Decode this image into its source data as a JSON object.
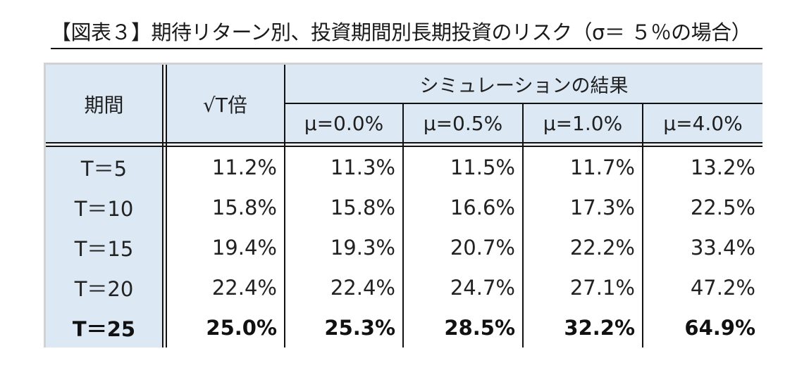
{
  "title": "【図表３】期待リターン別、投資期間別長期投資のリスク（σ＝ ５％の場合）",
  "table": {
    "header": {
      "period": "期間",
      "sqrt_t": "√T倍",
      "simulation_group": "シミュレーションの結果",
      "mu_columns": [
        "μ=0.0%",
        "μ=0.5%",
        "μ=1.0%",
        "μ=4.0%"
      ]
    },
    "rows": [
      {
        "period": "T＝5",
        "sqrt_t": "11.2%",
        "values": [
          "11.3%",
          "11.5%",
          "11.7%",
          "13.2%"
        ],
        "bold": false
      },
      {
        "period": "T＝10",
        "sqrt_t": "15.8%",
        "values": [
          "15.8%",
          "16.6%",
          "17.3%",
          "22.5%"
        ],
        "bold": false
      },
      {
        "period": "T＝15",
        "sqrt_t": "19.4%",
        "values": [
          "19.3%",
          "20.7%",
          "22.2%",
          "33.4%"
        ],
        "bold": false
      },
      {
        "period": "T＝20",
        "sqrt_t": "22.4%",
        "values": [
          "22.4%",
          "24.7%",
          "27.1%",
          "47.2%"
        ],
        "bold": false
      },
      {
        "period": "T＝25",
        "sqrt_t": "25.0%",
        "values": [
          "25.3%",
          "28.5%",
          "32.2%",
          "64.9%"
        ],
        "bold": true
      }
    ]
  },
  "colors": {
    "header_bg": "#dce9f5",
    "border": "#111111",
    "frame": "#d2d2d2"
  }
}
